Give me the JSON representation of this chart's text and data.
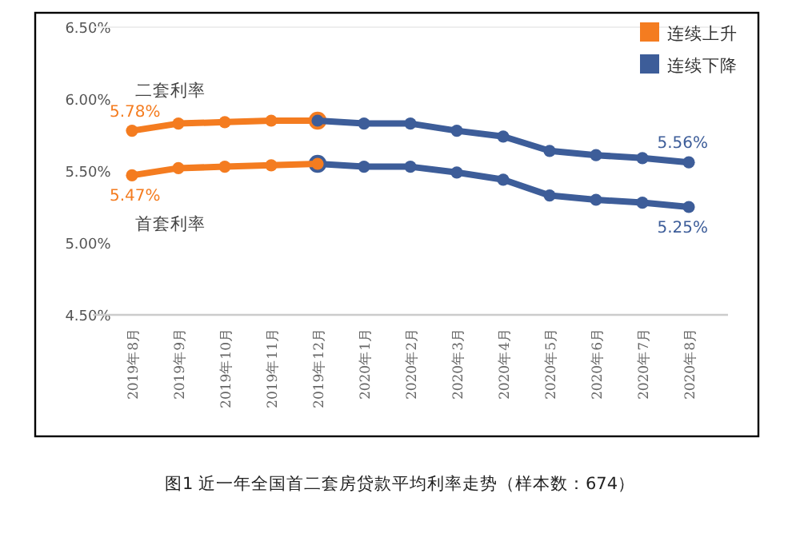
{
  "chart_data": {
    "type": "line",
    "title": "图1 近一年全国首二套房贷款平均利率走势（样本数：674）",
    "categories": [
      "2019年8月",
      "2019年9月",
      "2019年10月",
      "2019年11月",
      "2019年12月",
      "2020年1月",
      "2020年2月",
      "2020年3月",
      "2020年4月",
      "2020年5月",
      "2020年6月",
      "2020年7月",
      "2020年8月"
    ],
    "series": [
      {
        "name": "连续上升",
        "color": "#f47c20",
        "values": [
          5.78,
          5.83,
          5.84,
          5.85,
          5.85,
          null,
          null,
          null,
          null,
          null,
          null,
          null,
          null
        ],
        "value_labels": [
          "5.78%",
          null,
          null,
          null,
          null,
          null,
          null,
          null,
          null,
          null,
          null,
          null,
          null
        ]
      },
      {
        "name": "连续下降",
        "color": "#3d5d99",
        "values": [
          null,
          null,
          null,
          null,
          5.85,
          5.83,
          5.83,
          5.78,
          5.74,
          5.64,
          5.61,
          5.59,
          5.56
        ],
        "value_labels": [
          null,
          null,
          null,
          null,
          null,
          null,
          null,
          null,
          null,
          null,
          null,
          null,
          "5.56%"
        ]
      },
      {
        "color": "#f47c20",
        "values": [
          5.47,
          5.52,
          5.53,
          5.54,
          5.55,
          null,
          null,
          null,
          null,
          null,
          null,
          null,
          null
        ],
        "value_labels": [
          "5.47%",
          null,
          null,
          null,
          null,
          null,
          null,
          null,
          null,
          null,
          null,
          null,
          null
        ]
      },
      {
        "color": "#3d5d99",
        "values": [
          null,
          null,
          null,
          null,
          5.55,
          5.53,
          5.53,
          5.49,
          5.44,
          5.33,
          5.3,
          5.28,
          5.25
        ],
        "value_labels": [
          null,
          null,
          null,
          null,
          null,
          null,
          null,
          null,
          null,
          null,
          null,
          null,
          "5.25%"
        ]
      }
    ],
    "annotations": [
      {
        "text": "二套利率",
        "x": "2019年8月",
        "y": 5.78
      },
      {
        "text": "首套利率",
        "x": "2019年8月",
        "y": 5.47
      }
    ],
    "ylim": [
      4.5,
      6.5
    ],
    "yticks": [
      {
        "value": 4.5,
        "label": "4.50%"
      },
      {
        "value": 5.0,
        "label": "5.00%"
      },
      {
        "value": 5.5,
        "label": "5.50%"
      },
      {
        "value": 6.0,
        "label": "6.00%"
      },
      {
        "value": 6.5,
        "label": "6.50%"
      }
    ],
    "grid": false,
    "legend": "top right",
    "marker": "circle",
    "line_style": "solid"
  }
}
